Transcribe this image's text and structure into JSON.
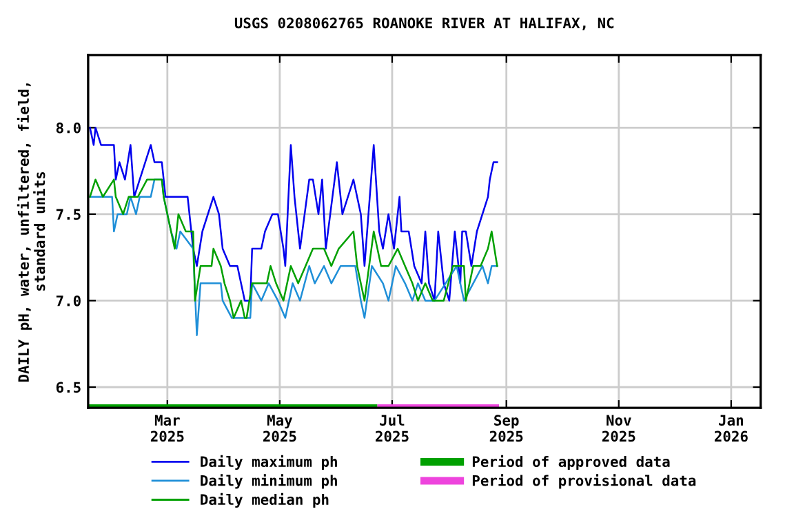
{
  "chart_data": {
    "type": "line",
    "title": "USGS 0208062765 ROANOKE RIVER AT HALIFAX, NC",
    "ylabel": "DAILY pH, water, unfiltered, field,\nstandard units",
    "xlim": [
      "2025-01-17",
      "2026-01-17"
    ],
    "xticks": [
      {
        "value": "2025-03-01",
        "label": "Mar\n2025"
      },
      {
        "value": "2025-05-01",
        "label": "May\n2025"
      },
      {
        "value": "2025-07-01",
        "label": "Jul\n2025"
      },
      {
        "value": "2025-09-01",
        "label": "Sep\n2025"
      },
      {
        "value": "2025-11-01",
        "label": "Nov\n2025"
      },
      {
        "value": "2026-01-01",
        "label": "Jan\n2026"
      }
    ],
    "ylim": [
      6.38,
      8.42
    ],
    "yticks": [
      {
        "value": 6.5,
        "label": "6.5"
      },
      {
        "value": 7.0,
        "label": "7.0"
      },
      {
        "value": 7.5,
        "label": "7.5"
      },
      {
        "value": 8.0,
        "label": "8.0"
      }
    ],
    "grid": true,
    "legend": "bottom",
    "series": [
      {
        "name": "Daily maximum ph",
        "color": "#0000ee",
        "x": [
          "2025-01-18",
          "2025-01-20",
          "2025-01-21",
          "2025-01-24",
          "2025-01-31",
          "2025-02-01",
          "2025-02-03",
          "2025-02-06",
          "2025-02-09",
          "2025-02-11",
          "2025-02-14",
          "2025-02-20",
          "2025-02-22",
          "2025-02-26",
          "2025-02-28",
          "2025-03-05",
          "2025-03-12",
          "2025-03-15",
          "2025-03-17",
          "2025-03-20",
          "2025-03-26",
          "2025-03-29",
          "2025-03-31",
          "2025-04-04",
          "2025-04-08",
          "2025-04-12",
          "2025-04-15",
          "2025-04-16",
          "2025-04-21",
          "2025-04-23",
          "2025-04-27",
          "2025-04-30",
          "2025-05-03",
          "2025-05-04",
          "2025-05-07",
          "2025-05-09",
          "2025-05-12",
          "2025-05-17",
          "2025-05-19",
          "2025-05-22",
          "2025-05-24",
          "2025-05-26",
          "2025-06-01",
          "2025-06-04",
          "2025-06-10",
          "2025-06-14",
          "2025-06-16",
          "2025-06-21",
          "2025-06-24",
          "2025-06-26",
          "2025-06-29",
          "2025-07-02",
          "2025-07-05",
          "2025-07-06",
          "2025-07-10",
          "2025-07-13",
          "2025-07-17",
          "2025-07-19",
          "2025-07-21",
          "2025-07-24",
          "2025-07-26",
          "2025-07-29",
          "2025-08-01",
          "2025-08-04",
          "2025-08-07",
          "2025-08-08",
          "2025-08-10",
          "2025-08-13",
          "2025-08-16",
          "2025-08-19",
          "2025-08-22",
          "2025-08-23",
          "2025-08-25",
          "2025-08-27"
        ],
        "values": [
          8.0,
          7.9,
          8.0,
          7.9,
          7.9,
          7.7,
          7.8,
          7.7,
          7.9,
          7.6,
          7.7,
          7.9,
          7.8,
          7.8,
          7.6,
          7.6,
          7.6,
          7.3,
          7.2,
          7.4,
          7.6,
          7.5,
          7.3,
          7.2,
          7.2,
          7.0,
          7.0,
          7.3,
          7.3,
          7.4,
          7.5,
          7.5,
          7.3,
          7.2,
          7.9,
          7.6,
          7.3,
          7.7,
          7.7,
          7.5,
          7.7,
          7.3,
          7.8,
          7.5,
          7.7,
          7.5,
          7.2,
          7.9,
          7.4,
          7.3,
          7.5,
          7.3,
          7.6,
          7.4,
          7.4,
          7.2,
          7.1,
          7.4,
          7.1,
          7.0,
          7.4,
          7.1,
          7.0,
          7.4,
          7.1,
          7.4,
          7.4,
          7.2,
          7.4,
          7.5,
          7.6,
          7.7,
          7.8,
          7.8
        ]
      },
      {
        "name": "Daily minimum ph",
        "color": "#1f8fd8",
        "x": [
          "2025-01-18",
          "2025-01-30",
          "2025-01-31",
          "2025-02-02",
          "2025-02-07",
          "2025-02-09",
          "2025-02-12",
          "2025-02-14",
          "2025-02-20",
          "2025-02-22",
          "2025-02-26",
          "2025-02-27",
          "2025-03-03",
          "2025-03-06",
          "2025-03-08",
          "2025-03-15",
          "2025-03-17",
          "2025-03-19",
          "2025-03-22",
          "2025-03-30",
          "2025-03-31",
          "2025-04-05",
          "2025-04-08",
          "2025-04-13",
          "2025-04-15",
          "2025-04-16",
          "2025-04-21",
          "2025-04-25",
          "2025-04-30",
          "2025-05-04",
          "2025-05-08",
          "2025-05-12",
          "2025-05-17",
          "2025-05-20",
          "2025-05-25",
          "2025-05-29",
          "2025-06-03",
          "2025-06-11",
          "2025-06-14",
          "2025-06-16",
          "2025-06-20",
          "2025-06-26",
          "2025-06-29",
          "2025-07-03",
          "2025-07-08",
          "2025-07-12",
          "2025-07-15",
          "2025-07-19",
          "2025-07-24",
          "2025-07-30",
          "2025-08-05",
          "2025-08-09",
          "2025-08-14",
          "2025-08-19",
          "2025-08-22",
          "2025-08-24",
          "2025-08-27"
        ],
        "values": [
          7.6,
          7.6,
          7.4,
          7.5,
          7.5,
          7.6,
          7.5,
          7.6,
          7.6,
          7.7,
          7.7,
          7.6,
          7.4,
          7.3,
          7.4,
          7.3,
          6.8,
          7.1,
          7.1,
          7.1,
          7.0,
          6.9,
          6.9,
          6.9,
          6.9,
          7.1,
          7.0,
          7.1,
          7.0,
          6.9,
          7.1,
          7.0,
          7.2,
          7.1,
          7.2,
          7.1,
          7.2,
          7.2,
          7.0,
          6.9,
          7.2,
          7.1,
          7.0,
          7.2,
          7.1,
          7.0,
          7.1,
          7.0,
          7.0,
          7.1,
          7.2,
          7.0,
          7.1,
          7.2,
          7.1,
          7.2,
          7.2
        ]
      },
      {
        "name": "Daily median ph",
        "color": "#00a000",
        "x": [
          "2025-01-18",
          "2025-01-21",
          "2025-01-25",
          "2025-01-31",
          "2025-02-01",
          "2025-02-05",
          "2025-02-08",
          "2025-02-13",
          "2025-02-18",
          "2025-02-26",
          "2025-02-27",
          "2025-03-01",
          "2025-03-03",
          "2025-03-05",
          "2025-03-07",
          "2025-03-11",
          "2025-03-15",
          "2025-03-16",
          "2025-03-19",
          "2025-03-25",
          "2025-03-26",
          "2025-03-30",
          "2025-04-01",
          "2025-04-04",
          "2025-04-06",
          "2025-04-10",
          "2025-04-12",
          "2025-04-13",
          "2025-04-16",
          "2025-04-24",
          "2025-04-26",
          "2025-04-29",
          "2025-05-03",
          "2025-05-07",
          "2025-05-11",
          "2025-05-15",
          "2025-05-19",
          "2025-05-25",
          "2025-05-29",
          "2025-06-02",
          "2025-06-10",
          "2025-06-12",
          "2025-06-16",
          "2025-06-21",
          "2025-06-25",
          "2025-06-29",
          "2025-07-04",
          "2025-07-08",
          "2025-07-12",
          "2025-07-15",
          "2025-07-19",
          "2025-07-23",
          "2025-07-29",
          "2025-08-03",
          "2025-08-09",
          "2025-08-10",
          "2025-08-14",
          "2025-08-18",
          "2025-08-22",
          "2025-08-24",
          "2025-08-27"
        ],
        "values": [
          7.6,
          7.7,
          7.6,
          7.7,
          7.6,
          7.5,
          7.6,
          7.6,
          7.7,
          7.7,
          7.6,
          7.5,
          7.4,
          7.3,
          7.5,
          7.4,
          7.4,
          7.0,
          7.2,
          7.2,
          7.3,
          7.2,
          7.1,
          7.0,
          6.9,
          7.0,
          6.9,
          6.9,
          7.1,
          7.1,
          7.2,
          7.1,
          7.0,
          7.2,
          7.1,
          7.2,
          7.3,
          7.3,
          7.2,
          7.3,
          7.4,
          7.2,
          7.0,
          7.4,
          7.2,
          7.2,
          7.3,
          7.2,
          7.1,
          7.0,
          7.1,
          7.0,
          7.0,
          7.2,
          7.2,
          7.0,
          7.2,
          7.2,
          7.3,
          7.4,
          7.2
        ]
      },
      {
        "name": "Period of approved data",
        "type": "area",
        "color": "#00a000",
        "x": [
          "2025-01-17",
          "2025-06-23"
        ],
        "values": [
          6.4,
          6.4
        ]
      },
      {
        "name": "Period of provisional data",
        "type": "area",
        "color": "#ee44dd",
        "x": [
          "2025-06-23",
          "2025-08-28"
        ],
        "values": [
          6.4,
          6.4
        ]
      }
    ]
  }
}
